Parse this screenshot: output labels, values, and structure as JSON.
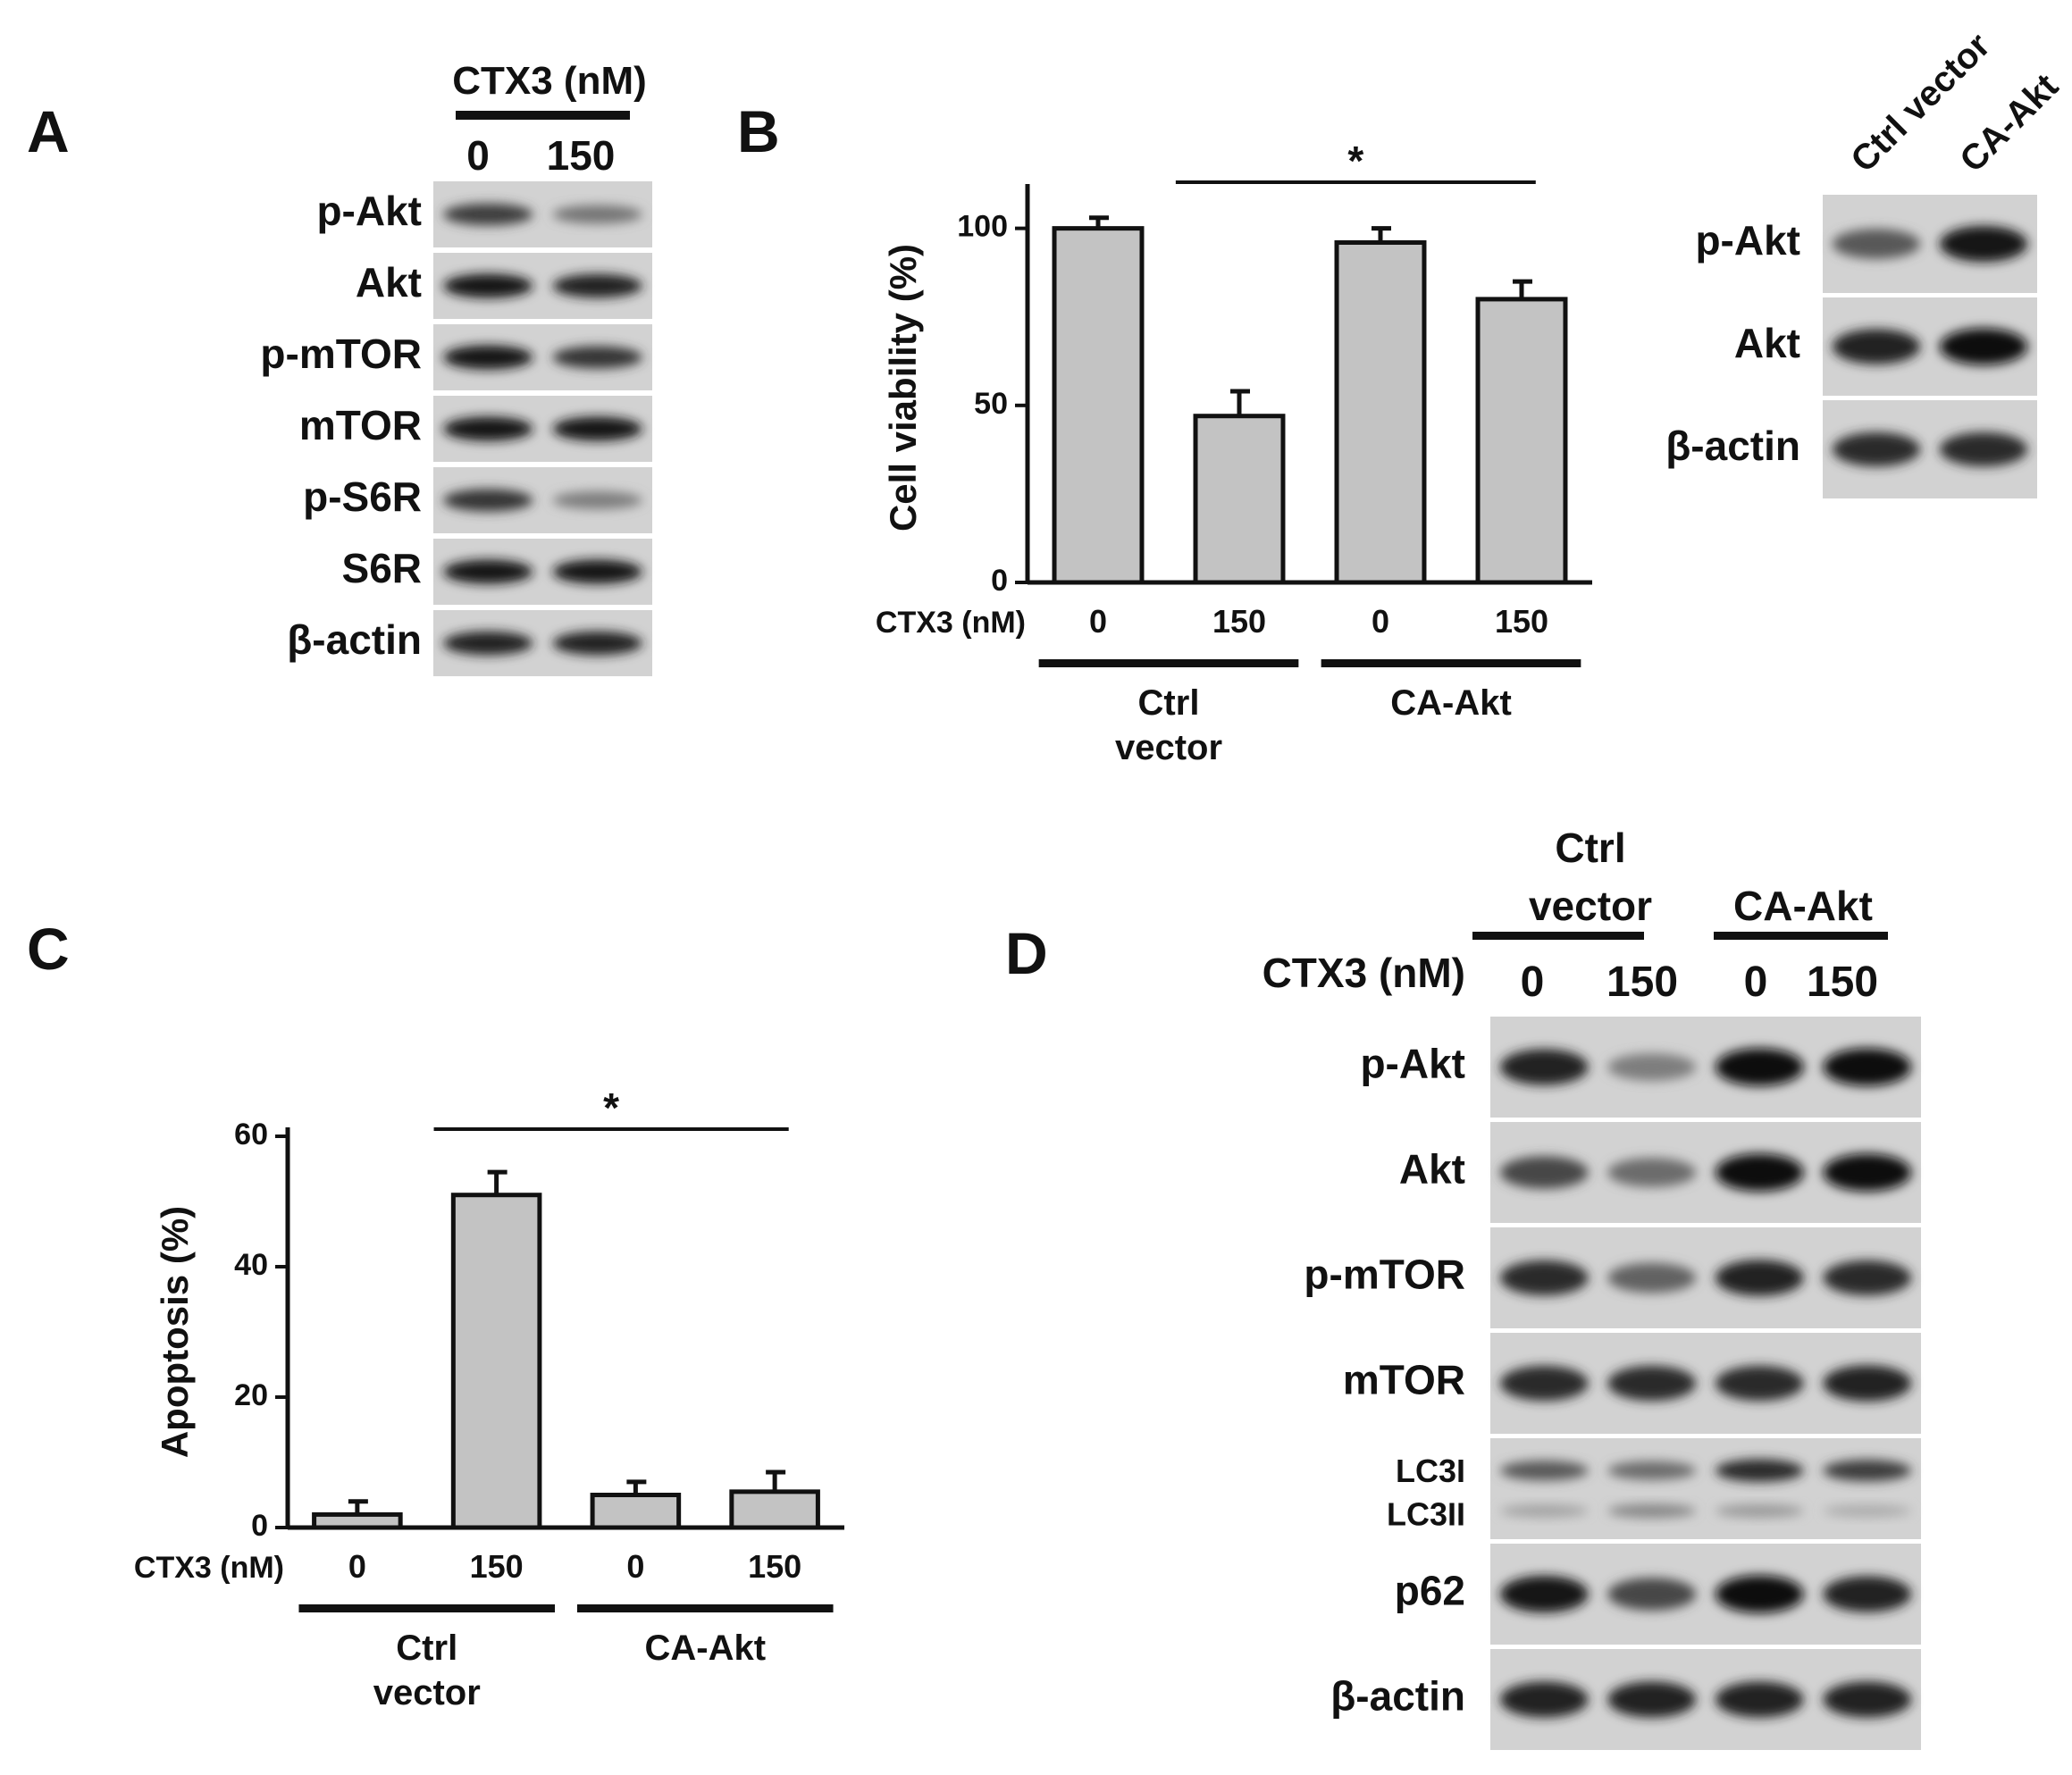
{
  "panels": {
    "A": {
      "letter": "A",
      "header": "CTX3 (nM)",
      "lanes": [
        "0",
        "150"
      ],
      "rows": [
        {
          "label": "p-Akt",
          "bands": [
            0.75,
            0.45
          ]
        },
        {
          "label": "Akt",
          "bands": [
            0.95,
            0.9
          ]
        },
        {
          "label": "p-mTOR",
          "bands": [
            0.95,
            0.8
          ]
        },
        {
          "label": "mTOR",
          "bands": [
            0.95,
            0.95
          ]
        },
        {
          "label": "p-S6R",
          "bands": [
            0.8,
            0.4
          ]
        },
        {
          "label": "S6R",
          "bands": [
            0.95,
            0.95
          ]
        },
        {
          "label": "β-actin",
          "bands": [
            0.9,
            0.9
          ]
        }
      ]
    },
    "B": {
      "letter": "B",
      "blot": {
        "lanes": [
          "Ctrl vector",
          "CA-Akt"
        ],
        "rows": [
          {
            "label": "p-Akt",
            "bands": [
              0.6,
              0.95
            ]
          },
          {
            "label": "Akt",
            "bands": [
              0.9,
              1.0
            ]
          },
          {
            "label": "β-actin",
            "bands": [
              0.85,
              0.85
            ]
          }
        ]
      }
    },
    "C": {
      "letter": "C"
    },
    "D": {
      "letter": "D",
      "groups": [
        "Ctrl vector",
        "CA-Akt"
      ],
      "header": "CTX3 (nM)",
      "lanes": [
        "0",
        "150",
        "0",
        "150"
      ],
      "rows": [
        {
          "label": "p-Akt",
          "bands": [
            0.9,
            0.4,
            1.0,
            1.0
          ]
        },
        {
          "label": "Akt",
          "bands": [
            0.7,
            0.5,
            1.0,
            1.0
          ]
        },
        {
          "label": "p-mTOR",
          "bands": [
            0.85,
            0.55,
            0.9,
            0.85
          ]
        },
        {
          "label": "mTOR",
          "bands": [
            0.85,
            0.85,
            0.85,
            0.9
          ]
        },
        {
          "label": "LC3I\nLC3II",
          "labels": [
            "LC3I",
            "LC3II"
          ],
          "bands": [
            0.6,
            0.5,
            0.85,
            0.75
          ],
          "bands2": [
            0.2,
            0.35,
            0.25,
            0.15
          ]
        },
        {
          "label": "p62",
          "bands": [
            0.95,
            0.7,
            1.0,
            0.9
          ]
        },
        {
          "label": "β-actin",
          "bands": [
            0.9,
            0.9,
            0.9,
            0.9
          ]
        }
      ]
    }
  },
  "chart_data": [
    {
      "panel": "B",
      "type": "bar",
      "categories": [
        "0",
        "150",
        "0",
        "150"
      ],
      "groups": [
        "Ctrl vector",
        "CA-Akt"
      ],
      "values": [
        100,
        47,
        96,
        80
      ],
      "errors": [
        3,
        7,
        4,
        5
      ],
      "ylabel": "Cell viability (%)",
      "xlabel": "CTX3 (nM)",
      "ylim": [
        0,
        110
      ],
      "yticks": [
        "0",
        "50",
        "100"
      ],
      "significance": "*",
      "grid": false
    },
    {
      "panel": "C",
      "type": "bar",
      "categories": [
        "0",
        "150",
        "0",
        "150"
      ],
      "groups": [
        "Ctrl vector",
        "CA-Akt"
      ],
      "values": [
        2,
        51,
        5,
        5.5
      ],
      "errors": [
        2,
        3.5,
        2,
        3
      ],
      "ylabel": "Apoptosis (%)",
      "xlabel": "CTX3 (nM)",
      "ylim": [
        0,
        60
      ],
      "yticks": [
        "0",
        "20",
        "40",
        "60"
      ],
      "significance": "*",
      "grid": false
    }
  ]
}
